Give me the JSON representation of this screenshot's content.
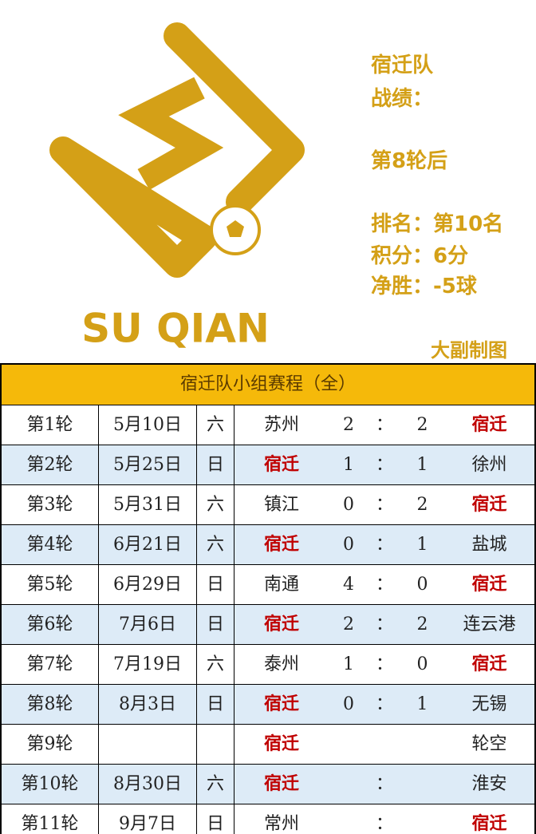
{
  "logo": {
    "text": "SU QIAN"
  },
  "info": {
    "team": "宿迁队",
    "record": "战绩：",
    "after": "第8轮后",
    "rank": "排名：第10名",
    "points": "积分：6分",
    "goal_diff": "净胜：-5球",
    "credit": "大副制图"
  },
  "table": {
    "title": "宿迁队小组赛程（全）",
    "rows": [
      [
        "第1轮",
        "5月10日",
        "六",
        "苏州",
        2,
        "：",
        2,
        {
          "text": "宿迁",
          "color": "#c00000"
        }
      ],
      [
        "第2轮",
        "5月25日",
        "日",
        {
          "text": "宿迁",
          "color": "#c00000"
        },
        1,
        "：",
        1,
        "徐州"
      ],
      [
        "第3轮",
        "5月31日",
        "六",
        "镇江",
        0,
        "：",
        2,
        {
          "text": "宿迁",
          "color": "#c00000"
        }
      ],
      [
        "第4轮",
        "6月21日",
        "六",
        {
          "text": "宿迁",
          "color": "#c00000"
        },
        0,
        "：",
        1,
        "盐城"
      ],
      [
        "第5轮",
        "6月29日",
        "日",
        "南通",
        4,
        "：",
        0,
        {
          "text": "宿迁",
          "color": "#c00000"
        }
      ],
      [
        "第6轮",
        "7月6日",
        "日",
        {
          "text": "宿迁",
          "color": "#c00000"
        },
        2,
        "：",
        2,
        "连云港"
      ],
      [
        "第7轮",
        "7月19日",
        "六",
        "泰州",
        1,
        "：",
        0,
        {
          "text": "宿迁",
          "color": "#c00000"
        }
      ],
      [
        "第8轮",
        "8月3日",
        "日",
        {
          "text": "宿迁",
          "color": "#c00000"
        },
        0,
        "：",
        1,
        "无锡"
      ],
      [
        "第9轮",
        null,
        null,
        {
          "text": "宿迁",
          "color": "#c00000"
        },
        null,
        null,
        null,
        "轮空"
      ],
      [
        "第10轮",
        "8月30日",
        "六",
        {
          "text": "宿迁",
          "color": "#c00000"
        },
        null,
        "：",
        null,
        "淮安"
      ],
      [
        "第11轮",
        "9月7日",
        "日",
        "常州",
        null,
        "：",
        null,
        {
          "text": "宿迁",
          "color": "#c00000"
        }
      ]
    ]
  }
}
